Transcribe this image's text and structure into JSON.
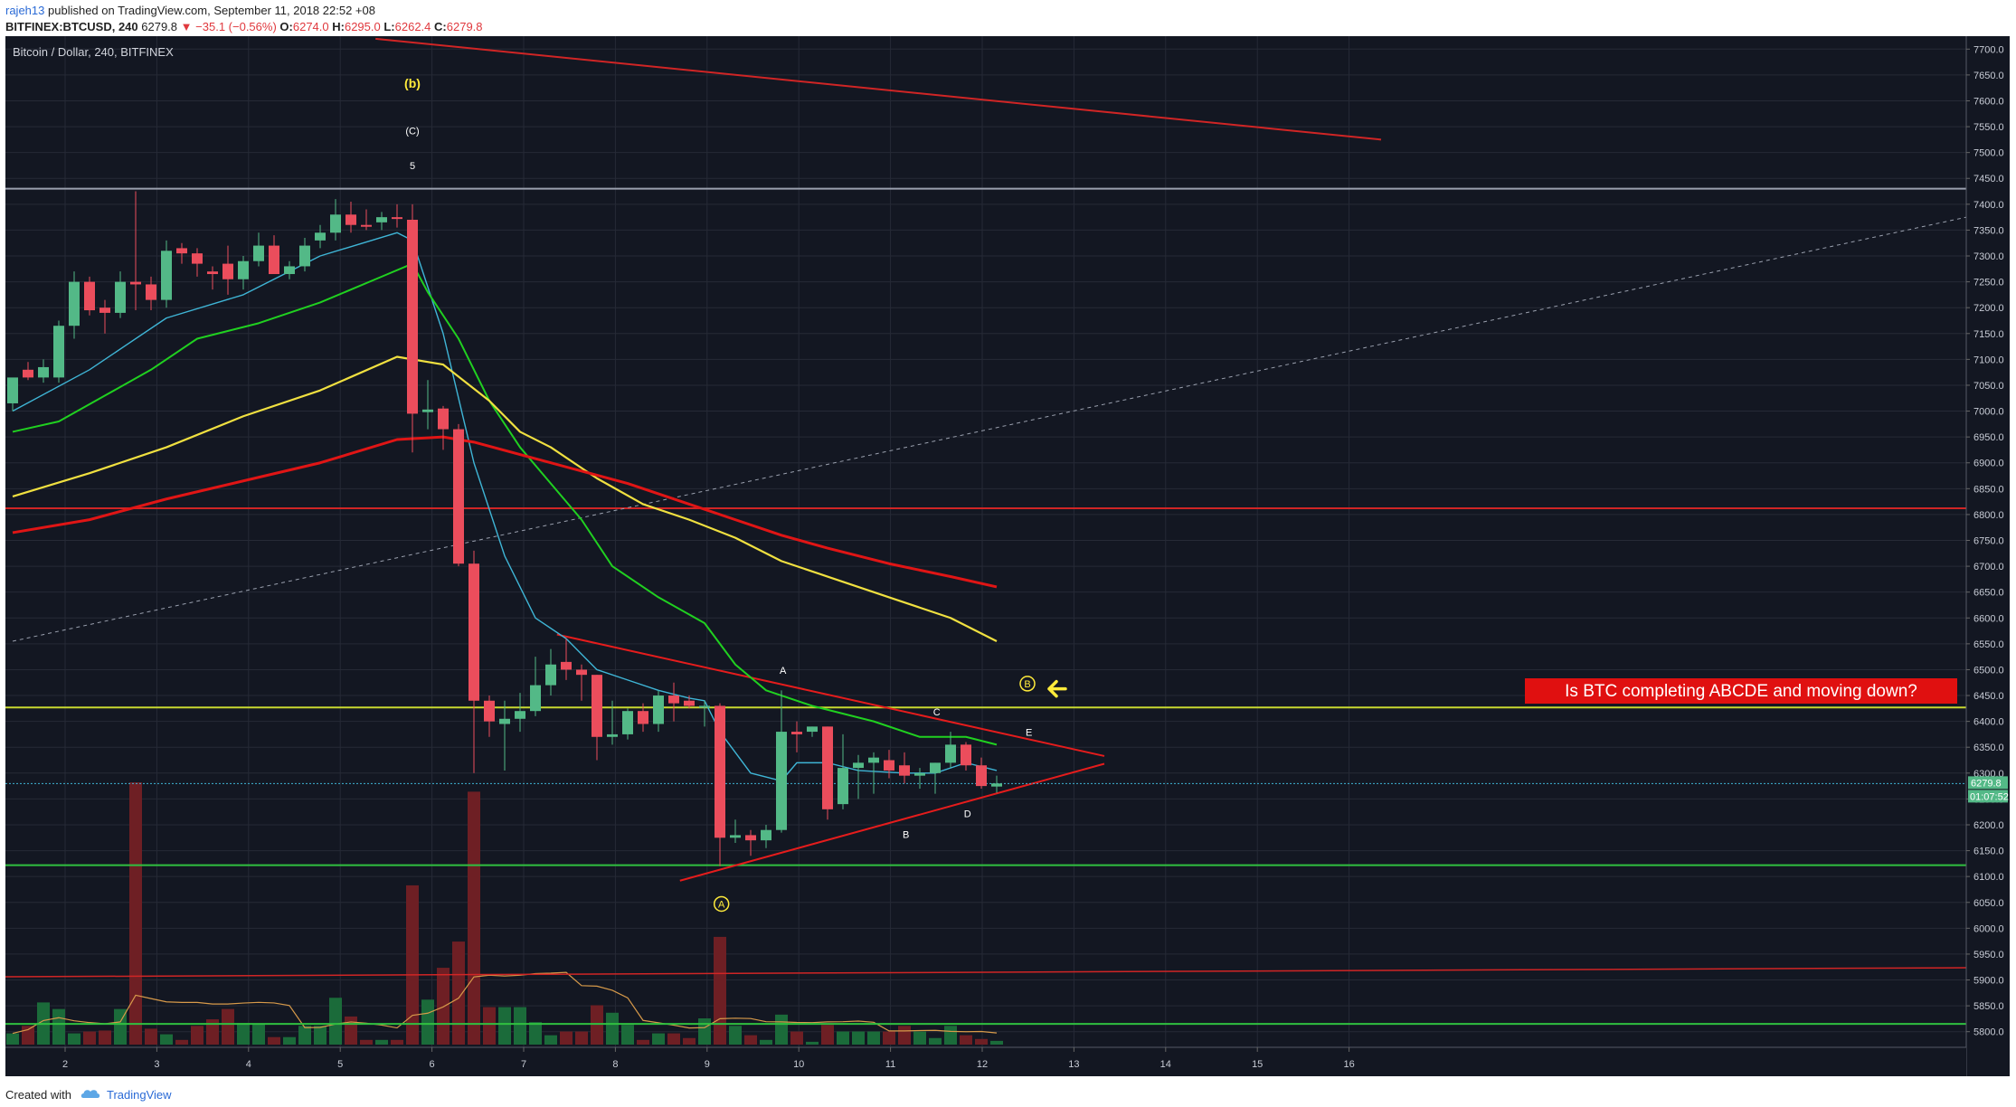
{
  "header": {
    "publisher": "rajeh13",
    "published_text": "published on TradingView.com, September 11, 2018 22:52 +08",
    "symbol": "BITFINEX:BTCUSD, 240",
    "last": "6279.8",
    "change": "−35.1 (−0.56%)",
    "open_label": "O:",
    "open": "6274.0",
    "high_label": "H:",
    "high": "6295.0",
    "low_label": "L:",
    "low": "6262.4",
    "close_label": "C:",
    "close": "6279.8"
  },
  "footer": {
    "created_with": "Created with",
    "brand": "TradingView"
  },
  "colors": {
    "background": "#131722",
    "grid": "#262a36",
    "up": "#53b987",
    "down": "#eb4d5c",
    "ema_cyan": "#3fb5d6",
    "ema_green": "#20d020",
    "ema_yellow": "#f0e040",
    "ema_red": "#e01515",
    "hline_red": "#d02525",
    "hline_white": "#9aa0ae",
    "hline_yellow": "#c8d830",
    "hline_green": "#30c040",
    "triangle": "#e51c1c",
    "note_bg": "#e01010",
    "note_text": "#ffffff",
    "wave_label": "#ffeb3b"
  },
  "chart_data": {
    "type": "candlestick",
    "title": "Bitcoin / Dollar, 240, BITFINEX",
    "ylim": [
      5775,
      7725
    ],
    "y_ticks": [
      "7700.0",
      "7650.0",
      "7600.0",
      "7550.0",
      "7500.0",
      "7450.0",
      "7400.0",
      "7350.0",
      "7300.0",
      "7250.0",
      "7200.0",
      "7150.0",
      "7100.0",
      "7050.0",
      "7000.0",
      "6950.0",
      "6900.0",
      "6850.0",
      "6800.0",
      "6750.0",
      "6700.0",
      "6650.0",
      "6600.0",
      "6550.0",
      "6500.0",
      "6450.0",
      "6400.0",
      "6350.0",
      "6300.0",
      "6250.0",
      "6200.0",
      "6150.0",
      "6100.0",
      "6050.0",
      "6000.0",
      "5950.0",
      "5900.0",
      "5850.0",
      "5800.0"
    ],
    "x_ticks": [
      "2",
      "3",
      "4",
      "5",
      "6",
      "7",
      "8",
      "9",
      "10",
      "11",
      "12",
      "13",
      "14",
      "15",
      "16"
    ],
    "price_label": "6279.8",
    "countdown_label": "01:07:52",
    "candles": [
      {
        "o": 7015,
        "h": 7050,
        "l": 7000,
        "c": 7065
      },
      {
        "o": 7080,
        "h": 7095,
        "l": 7060,
        "c": 7065
      },
      {
        "o": 7065,
        "h": 7100,
        "l": 7055,
        "c": 7085
      },
      {
        "o": 7065,
        "h": 7175,
        "l": 7055,
        "c": 7165
      },
      {
        "o": 7165,
        "h": 7270,
        "l": 7140,
        "c": 7250
      },
      {
        "o": 7250,
        "h": 7260,
        "l": 7185,
        "c": 7195
      },
      {
        "o": 7200,
        "h": 7215,
        "l": 7150,
        "c": 7190
      },
      {
        "o": 7190,
        "h": 7270,
        "l": 7180,
        "c": 7250
      },
      {
        "o": 7250,
        "h": 7425,
        "l": 7195,
        "c": 7245
      },
      {
        "o": 7245,
        "h": 7260,
        "l": 7195,
        "c": 7215
      },
      {
        "o": 7215,
        "h": 7330,
        "l": 7200,
        "c": 7310
      },
      {
        "o": 7315,
        "h": 7325,
        "l": 7285,
        "c": 7305
      },
      {
        "o": 7305,
        "h": 7315,
        "l": 7260,
        "c": 7285
      },
      {
        "o": 7270,
        "h": 7280,
        "l": 7235,
        "c": 7265
      },
      {
        "o": 7285,
        "h": 7320,
        "l": 7225,
        "c": 7255
      },
      {
        "o": 7255,
        "h": 7300,
        "l": 7235,
        "c": 7290
      },
      {
        "o": 7290,
        "h": 7345,
        "l": 7280,
        "c": 7320
      },
      {
        "o": 7320,
        "h": 7340,
        "l": 7265,
        "c": 7265
      },
      {
        "o": 7265,
        "h": 7290,
        "l": 7255,
        "c": 7280
      },
      {
        "o": 7280,
        "h": 7335,
        "l": 7270,
        "c": 7320
      },
      {
        "o": 7330,
        "h": 7360,
        "l": 7315,
        "c": 7345
      },
      {
        "o": 7345,
        "h": 7410,
        "l": 7330,
        "c": 7380
      },
      {
        "o": 7380,
        "h": 7405,
        "l": 7345,
        "c": 7360
      },
      {
        "o": 7360,
        "h": 7390,
        "l": 7350,
        "c": 7358
      },
      {
        "o": 7365,
        "h": 7385,
        "l": 7350,
        "c": 7375
      },
      {
        "o": 7375,
        "h": 7400,
        "l": 7355,
        "c": 7373
      },
      {
        "o": 7370,
        "h": 7400,
        "l": 6920,
        "c": 6995
      },
      {
        "o": 6998,
        "h": 7060,
        "l": 6965,
        "c": 7003
      },
      {
        "o": 7005,
        "h": 7010,
        "l": 6925,
        "c": 6965
      },
      {
        "o": 6965,
        "h": 6975,
        "l": 6700,
        "c": 6705
      },
      {
        "o": 6705,
        "h": 6730,
        "l": 6300,
        "c": 6440
      },
      {
        "o": 6440,
        "h": 6450,
        "l": 6370,
        "c": 6400
      },
      {
        "o": 6395,
        "h": 6440,
        "l": 6305,
        "c": 6405
      },
      {
        "o": 6405,
        "h": 6455,
        "l": 6380,
        "c": 6420
      },
      {
        "o": 6420,
        "h": 6525,
        "l": 6410,
        "c": 6470
      },
      {
        "o": 6470,
        "h": 6540,
        "l": 6450,
        "c": 6510
      },
      {
        "o": 6515,
        "h": 6560,
        "l": 6480,
        "c": 6500
      },
      {
        "o": 6500,
        "h": 6510,
        "l": 6440,
        "c": 6490
      },
      {
        "o": 6490,
        "h": 6490,
        "l": 6325,
        "c": 6370
      },
      {
        "o": 6370,
        "h": 6440,
        "l": 6355,
        "c": 6375
      },
      {
        "o": 6375,
        "h": 6425,
        "l": 6365,
        "c": 6420
      },
      {
        "o": 6420,
        "h": 6435,
        "l": 6380,
        "c": 6395
      },
      {
        "o": 6395,
        "h": 6460,
        "l": 6380,
        "c": 6450
      },
      {
        "o": 6450,
        "h": 6475,
        "l": 6400,
        "c": 6435
      },
      {
        "o": 6440,
        "h": 6450,
        "l": 6425,
        "c": 6430
      },
      {
        "o": 6430,
        "h": 6440,
        "l": 6390,
        "c": 6430
      },
      {
        "o": 6430,
        "h": 6435,
        "l": 6120,
        "c": 6175
      },
      {
        "o": 6175,
        "h": 6210,
        "l": 6165,
        "c": 6180
      },
      {
        "o": 6180,
        "h": 6190,
        "l": 6140,
        "c": 6170
      },
      {
        "o": 6170,
        "h": 6200,
        "l": 6155,
        "c": 6190
      },
      {
        "o": 6190,
        "h": 6460,
        "l": 6185,
        "c": 6380
      },
      {
        "o": 6380,
        "h": 6400,
        "l": 6340,
        "c": 6375
      },
      {
        "o": 6380,
        "h": 6390,
        "l": 6370,
        "c": 6390
      },
      {
        "o": 6390,
        "h": 6390,
        "l": 6210,
        "c": 6230
      },
      {
        "o": 6240,
        "h": 6375,
        "l": 6230,
        "c": 6310
      },
      {
        "o": 6310,
        "h": 6335,
        "l": 6250,
        "c": 6320
      },
      {
        "o": 6320,
        "h": 6340,
        "l": 6260,
        "c": 6330
      },
      {
        "o": 6325,
        "h": 6345,
        "l": 6290,
        "c": 6305
      },
      {
        "o": 6315,
        "h": 6340,
        "l": 6280,
        "c": 6295
      },
      {
        "o": 6295,
        "h": 6310,
        "l": 6270,
        "c": 6300
      },
      {
        "o": 6300,
        "h": 6320,
        "l": 6260,
        "c": 6320
      },
      {
        "o": 6320,
        "h": 6380,
        "l": 6310,
        "c": 6355
      },
      {
        "o": 6355,
        "h": 6360,
        "l": 6305,
        "c": 6315
      },
      {
        "o": 6315,
        "h": 6330,
        "l": 6270,
        "c": 6275
      },
      {
        "o": 6274,
        "h": 6295,
        "l": 6262,
        "c": 6280
      }
    ],
    "volumes": [
      {
        "v": 0.12
      },
      {
        "v": 0.2
      },
      {
        "v": 0.45
      },
      {
        "v": 0.38
      },
      {
        "v": 0.12
      },
      {
        "v": 0.14
      },
      {
        "v": 0.15
      },
      {
        "v": 0.38
      },
      {
        "v": 2.8
      },
      {
        "v": 0.17
      },
      {
        "v": 0.11
      },
      {
        "v": 0.05
      },
      {
        "v": 0.2
      },
      {
        "v": 0.27
      },
      {
        "v": 0.38
      },
      {
        "v": 0.23
      },
      {
        "v": 0.22
      },
      {
        "v": 0.08
      },
      {
        "v": 0.08
      },
      {
        "v": 0.2
      },
      {
        "v": 0.2
      },
      {
        "v": 0.5
      },
      {
        "v": 0.3
      },
      {
        "v": 0.05
      },
      {
        "v": 0.05
      },
      {
        "v": 0.05
      },
      {
        "v": 1.7
      },
      {
        "v": 0.48
      },
      {
        "v": 0.82
      },
      {
        "v": 1.1
      },
      {
        "v": 2.7
      },
      {
        "v": 0.4
      },
      {
        "v": 0.4
      },
      {
        "v": 0.4
      },
      {
        "v": 0.24
      },
      {
        "v": 0.1
      },
      {
        "v": 0.14
      },
      {
        "v": 0.14
      },
      {
        "v": 0.42
      },
      {
        "v": 0.34
      },
      {
        "v": 0.21
      },
      {
        "v": 0.05
      },
      {
        "v": 0.12
      },
      {
        "v": 0.12
      },
      {
        "v": 0.07
      },
      {
        "v": 0.28
      },
      {
        "v": 1.15
      },
      {
        "v": 0.2
      },
      {
        "v": 0.1
      },
      {
        "v": 0.05
      },
      {
        "v": 0.32
      },
      {
        "v": 0.14
      },
      {
        "v": 0.03
      },
      {
        "v": 0.21
      },
      {
        "v": 0.14
      },
      {
        "v": 0.14
      },
      {
        "v": 0.14
      },
      {
        "v": 0.14
      },
      {
        "v": 0.2
      },
      {
        "v": 0.14
      },
      {
        "v": 0.07
      },
      {
        "v": 0.2
      },
      {
        "v": 0.1
      },
      {
        "v": 0.06
      },
      {
        "v": 0.04
      }
    ],
    "moving_averages": [
      {
        "name": "ema_cyan",
        "points": [
          [
            0,
            7000
          ],
          [
            5,
            7080
          ],
          [
            10,
            7180
          ],
          [
            15,
            7225
          ],
          [
            20,
            7300
          ],
          [
            25,
            7345
          ],
          [
            26,
            7330
          ],
          [
            28,
            7150
          ],
          [
            30,
            6900
          ],
          [
            32,
            6720
          ],
          [
            34,
            6600
          ],
          [
            36,
            6560
          ],
          [
            38,
            6500
          ],
          [
            40,
            6480
          ],
          [
            42,
            6460
          ],
          [
            44,
            6445
          ],
          [
            45,
            6440
          ],
          [
            46,
            6380
          ],
          [
            48,
            6300
          ],
          [
            50,
            6285
          ],
          [
            51,
            6320
          ],
          [
            53,
            6320
          ],
          [
            55,
            6305
          ],
          [
            58,
            6300
          ],
          [
            60,
            6300
          ],
          [
            62,
            6320
          ],
          [
            64,
            6305
          ]
        ]
      },
      {
        "name": "ema_green",
        "points": [
          [
            0,
            6960
          ],
          [
            3,
            6980
          ],
          [
            6,
            7030
          ],
          [
            9,
            7080
          ],
          [
            12,
            7140
          ],
          [
            16,
            7170
          ],
          [
            20,
            7210
          ],
          [
            24,
            7260
          ],
          [
            26,
            7285
          ],
          [
            27,
            7230
          ],
          [
            29,
            7140
          ],
          [
            31,
            7020
          ],
          [
            33,
            6930
          ],
          [
            35,
            6860
          ],
          [
            37,
            6790
          ],
          [
            39,
            6700
          ],
          [
            42,
            6640
          ],
          [
            45,
            6590
          ],
          [
            47,
            6510
          ],
          [
            49,
            6460
          ],
          [
            52,
            6430
          ],
          [
            56,
            6400
          ],
          [
            59,
            6370
          ],
          [
            62,
            6370
          ],
          [
            64,
            6355
          ]
        ]
      },
      {
        "name": "ema_yellow",
        "points": [
          [
            0,
            6835
          ],
          [
            5,
            6880
          ],
          [
            10,
            6930
          ],
          [
            15,
            6990
          ],
          [
            20,
            7040
          ],
          [
            25,
            7105
          ],
          [
            28,
            7090
          ],
          [
            31,
            7020
          ],
          [
            33,
            6960
          ],
          [
            35,
            6930
          ],
          [
            38,
            6870
          ],
          [
            41,
            6820
          ],
          [
            44,
            6790
          ],
          [
            47,
            6755
          ],
          [
            50,
            6710
          ],
          [
            53,
            6680
          ],
          [
            57,
            6640
          ],
          [
            61,
            6600
          ],
          [
            64,
            6555
          ]
        ]
      },
      {
        "name": "ema_red",
        "points": [
          [
            0,
            6765
          ],
          [
            5,
            6790
          ],
          [
            10,
            6830
          ],
          [
            15,
            6865
          ],
          [
            20,
            6900
          ],
          [
            25,
            6945
          ],
          [
            28,
            6950
          ],
          [
            30,
            6940
          ],
          [
            35,
            6900
          ],
          [
            40,
            6860
          ],
          [
            44,
            6820
          ],
          [
            47,
            6790
          ],
          [
            50,
            6760
          ],
          [
            53,
            6735
          ],
          [
            57,
            6705
          ],
          [
            61,
            6680
          ],
          [
            64,
            6660
          ]
        ]
      }
    ],
    "horizontal_lines": [
      {
        "price": 7430,
        "color": "hline_white"
      },
      {
        "price": 6812,
        "color": "hline_red"
      },
      {
        "price": 6427,
        "color": "hline_yellow"
      },
      {
        "price": 6122,
        "color": "hline_green"
      },
      {
        "price": 5815,
        "color": "hline_green"
      }
    ],
    "trend_lines": [
      {
        "name": "upper-resistance",
        "from": [
          23.6,
          7720
        ],
        "to": [
          89.0,
          7525
        ],
        "color": "hline_red"
      },
      {
        "name": "triangle-top",
        "from": [
          35.4,
          6568
        ],
        "to": [
          71.0,
          6333
        ],
        "color": "triangle"
      },
      {
        "name": "triangle-bottom",
        "from": [
          43.4,
          6092
        ],
        "to": [
          71.0,
          6318
        ],
        "color": "triangle"
      }
    ],
    "dashed_line": {
      "from": [
        0,
        6555
      ],
      "to": [
        91.3,
        7375
      ]
    },
    "annotations": [
      {
        "text": "(b)",
        "x": 26.0,
        "y": 7625,
        "color": "wave_label",
        "bold": true,
        "size": 14
      },
      {
        "text": "(C)",
        "x": 26.0,
        "y": 7535,
        "color": "#ffffff",
        "bold": false,
        "size": 11
      },
      {
        "text": "5",
        "x": 26.0,
        "y": 7468,
        "color": "#ffffff",
        "bold": false,
        "size": 11
      },
      {
        "text": "A",
        "x": 50.1,
        "y": 6492,
        "color": "#ffffff",
        "bold": false,
        "size": 11
      },
      {
        "text": "B",
        "x": 58.1,
        "y": 6175,
        "color": "#ffffff",
        "bold": false,
        "size": 11
      },
      {
        "text": "C",
        "x": 60.1,
        "y": 6412,
        "color": "#ffffff",
        "bold": false,
        "size": 11
      },
      {
        "text": "D",
        "x": 62.1,
        "y": 6215,
        "color": "#ffffff",
        "bold": false,
        "size": 11
      },
      {
        "text": "E",
        "x": 66.1,
        "y": 6372,
        "color": "#ffffff",
        "bold": false,
        "size": 11
      }
    ],
    "circled_labels": [
      {
        "text": "A",
        "x": 46.1,
        "y": 6047
      },
      {
        "text": "B",
        "x": 66.0,
        "y": 6473
      }
    ],
    "arrow": {
      "x": 68.0,
      "y": 6463
    },
    "note": "Is BTC completing ABCDE and moving down?"
  }
}
